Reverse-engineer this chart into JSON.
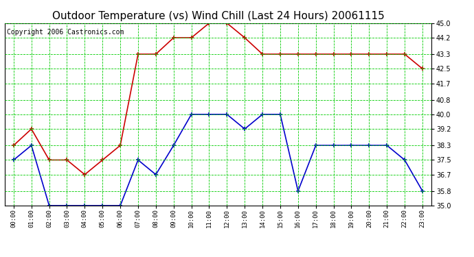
{
  "title": "Outdoor Temperature (vs) Wind Chill (Last 24 Hours) 20061115",
  "copyright": "Copyright 2006 Castronics.com",
  "hours": [
    "00:00",
    "01:00",
    "02:00",
    "03:00",
    "04:00",
    "05:00",
    "06:00",
    "07:00",
    "08:00",
    "09:00",
    "10:00",
    "11:00",
    "12:00",
    "13:00",
    "14:00",
    "15:00",
    "16:00",
    "17:00",
    "18:00",
    "19:00",
    "20:00",
    "21:00",
    "22:00",
    "23:00"
  ],
  "temp": [
    38.3,
    39.2,
    37.5,
    37.5,
    36.7,
    37.5,
    38.3,
    43.3,
    43.3,
    44.2,
    44.2,
    45.0,
    45.0,
    44.2,
    43.3,
    43.3,
    43.3,
    43.3,
    43.3,
    43.3,
    43.3,
    43.3,
    43.3,
    42.5
  ],
  "windchill": [
    37.5,
    38.3,
    35.0,
    35.0,
    35.0,
    35.0,
    35.0,
    37.5,
    36.7,
    38.3,
    40.0,
    40.0,
    40.0,
    39.2,
    40.0,
    40.0,
    35.8,
    38.3,
    38.3,
    38.3,
    38.3,
    38.3,
    37.5,
    35.8
  ],
  "temp_color": "#cc0000",
  "windchill_color": "#0000cc",
  "grid_color": "#00cc00",
  "bg_color": "#ffffff",
  "ylim": [
    35.0,
    45.0
  ],
  "yticks": [
    35.0,
    35.8,
    36.7,
    37.5,
    38.3,
    39.2,
    40.0,
    40.8,
    41.7,
    42.5,
    43.3,
    44.2,
    45.0
  ],
  "title_fontsize": 11,
  "copyright_fontsize": 7
}
